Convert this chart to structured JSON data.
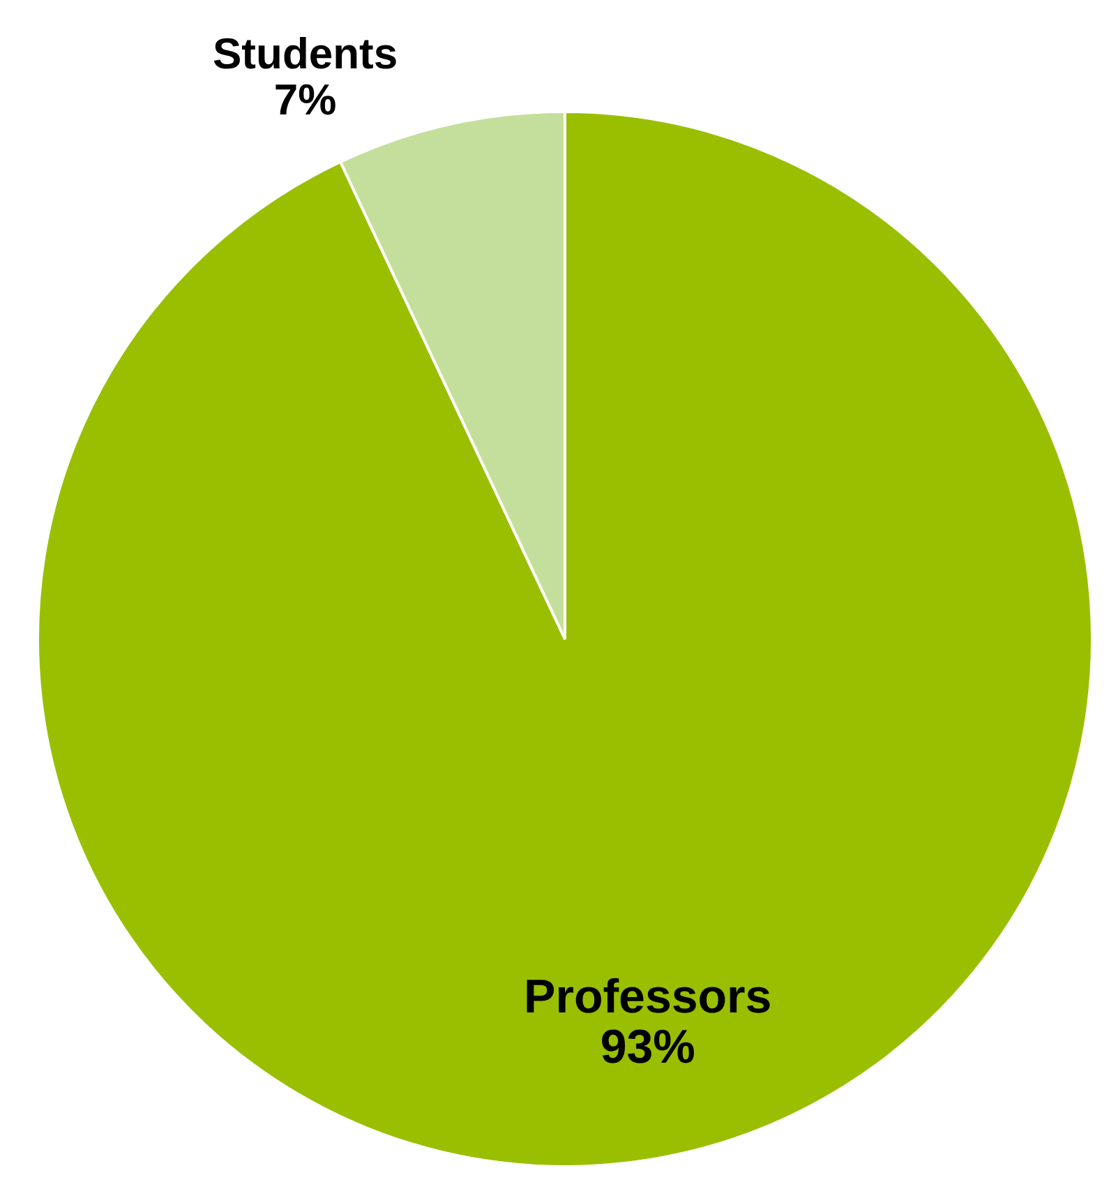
{
  "chart_data": {
    "type": "pie",
    "categories": [
      "Professors",
      "Students"
    ],
    "values": [
      93,
      7
    ],
    "colors": [
      "#99bf00",
      "#c4df9b"
    ],
    "value_labels": [
      "93%",
      "7%"
    ]
  }
}
